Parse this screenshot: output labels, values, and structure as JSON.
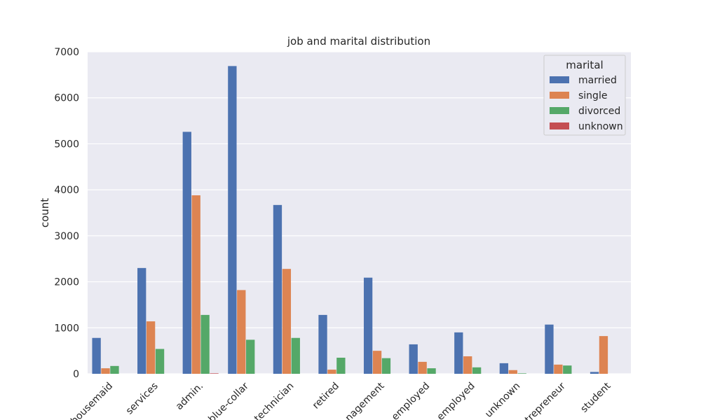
{
  "chart_data": {
    "type": "bar",
    "title": "job and marital distribution",
    "xlabel": "",
    "ylabel": "count",
    "ylim": [
      0,
      7000
    ],
    "yticks": [
      0,
      1000,
      2000,
      3000,
      4000,
      5000,
      6000,
      7000
    ],
    "grid": true,
    "legend": {
      "title": "marital",
      "position": "top-right"
    },
    "categories": [
      "housemaid",
      "services",
      "admin.",
      "blue-collar",
      "technician",
      "retired",
      "management",
      "unemployed",
      "self-employed",
      "unknown",
      "entrepreneur",
      "student"
    ],
    "tick_labels": [
      "housemaid",
      "services",
      "admin.",
      "blue-collar",
      "technician",
      "retired",
      "nagement",
      "employed",
      "employed",
      "unknown",
      "trepreneur",
      "student"
    ],
    "series": [
      {
        "name": "married",
        "color": "#4c72b0",
        "values": [
          780,
          2300,
          5260,
          6690,
          3670,
          1280,
          2090,
          640,
          900,
          230,
          1070,
          40
        ]
      },
      {
        "name": "single",
        "color": "#dd8452",
        "values": [
          120,
          1140,
          3880,
          1820,
          2280,
          90,
          500,
          260,
          380,
          80,
          200,
          820
        ]
      },
      {
        "name": "divorced",
        "color": "#55a868",
        "values": [
          170,
          540,
          1280,
          740,
          780,
          350,
          340,
          120,
          140,
          10,
          180,
          0
        ]
      },
      {
        "name": "unknown",
        "color": "#c44e52",
        "values": [
          0,
          0,
          10,
          0,
          0,
          0,
          0,
          0,
          0,
          0,
          0,
          0
        ]
      }
    ]
  }
}
